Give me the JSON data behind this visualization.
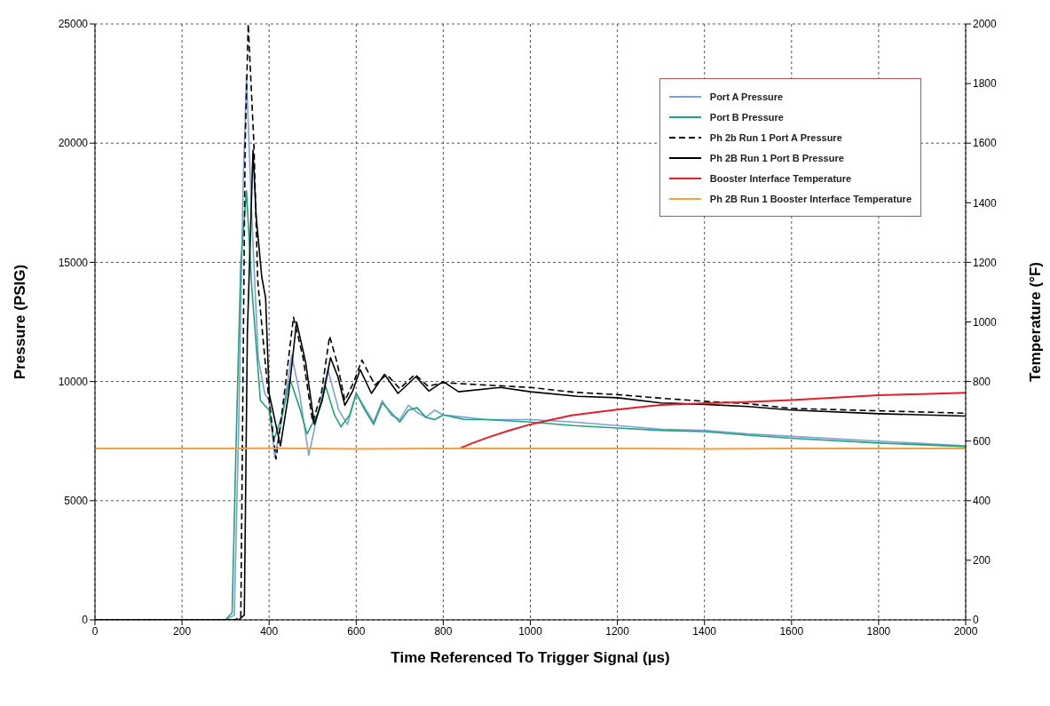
{
  "chart_data": {
    "type": "line",
    "xlabel": "Time Referenced To Trigger Signal (µs)",
    "ylabel": "Pressure (PSIG)",
    "y2label": "Temperature (°F)",
    "xlim": [
      0,
      2000
    ],
    "xticks": [
      0,
      200,
      400,
      600,
      800,
      1000,
      1200,
      1400,
      1600,
      1800,
      2000
    ],
    "ylim": [
      0,
      25000
    ],
    "yticks": [
      0,
      5000,
      10000,
      15000,
      20000,
      25000
    ],
    "y2lim": [
      0,
      2000
    ],
    "y2ticks": [
      0,
      200,
      400,
      600,
      800,
      1000,
      1200,
      1400,
      1600,
      1800,
      2000
    ],
    "grid": true,
    "legend": "top right",
    "marker": "none",
    "series": [
      {
        "name": "Port A Pressure",
        "color": "#7f9fd6",
        "x": [
          0,
          300,
          320,
          330,
          340,
          348,
          360,
          375,
          390,
          400,
          413,
          430,
          452,
          470,
          491,
          510,
          535,
          560,
          580,
          600,
          620,
          640,
          660,
          680,
          700,
          720,
          740,
          760,
          780,
          800,
          850,
          900,
          1000,
          1100,
          1200,
          1300,
          1400,
          1500,
          1600,
          1800,
          2000
        ],
        "values": [
          0,
          0,
          200,
          8000,
          18000,
          22800,
          17000,
          11000,
          9500,
          9200,
          6800,
          8500,
          11100,
          9500,
          6900,
          8500,
          10500,
          8800,
          8200,
          9500,
          8900,
          8300,
          9200,
          8600,
          8400,
          9000,
          8700,
          8500,
          8800,
          8600,
          8500,
          8400,
          8400,
          8300,
          8150,
          8000,
          7950,
          7800,
          7700,
          7500,
          7300
        ]
      },
      {
        "name": "Port B Pressure",
        "color": "#1fa37a",
        "x": [
          0,
          300,
          315,
          325,
          335,
          348,
          360,
          380,
          390,
          400,
          410,
          430,
          448,
          470,
          487,
          510,
          530,
          550,
          565,
          585,
          600,
          620,
          640,
          660,
          680,
          700,
          720,
          740,
          760,
          780,
          800,
          850,
          900,
          1000,
          1100,
          1200,
          1300,
          1400,
          1500,
          1600,
          1800,
          2000
        ],
        "values": [
          0,
          0,
          300,
          8000,
          15000,
          18000,
          14000,
          9200,
          9000,
          8800,
          7500,
          8600,
          10100,
          8900,
          7800,
          8600,
          9800,
          8600,
          8100,
          8600,
          9500,
          8800,
          8200,
          9100,
          8700,
          8300,
          8800,
          8900,
          8500,
          8400,
          8600,
          8400,
          8400,
          8300,
          8150,
          8050,
          7950,
          7900,
          7750,
          7620,
          7420,
          7270
        ]
      },
      {
        "name": "Ph 2b Run 1 Port A Pressure",
        "color": "#000000",
        "line_style": "dashed",
        "x": [
          0,
          320,
          335,
          345,
          352,
          365,
          374,
          385,
          396,
          416,
          435,
          456,
          478,
          500,
          520,
          539,
          556,
          574,
          595,
          613,
          643,
          670,
          700,
          735,
          765,
          800,
          900,
          1000,
          1100,
          1200,
          1300,
          1400,
          1500,
          1600,
          1800,
          2000
        ],
        "values": [
          0,
          0,
          100,
          20000,
          25000,
          20000,
          14200,
          12000,
          9850,
          6750,
          9500,
          12700,
          11000,
          8300,
          9500,
          11900,
          10800,
          9200,
          10000,
          10900,
          9850,
          10300,
          9700,
          10300,
          9800,
          9950,
          9850,
          9750,
          9550,
          9450,
          9300,
          9170,
          9070,
          8870,
          8770,
          8670
        ]
      },
      {
        "name": "Ph 2B Run 1 Port B Pressure",
        "color": "#000000",
        "x": [
          0,
          330,
          343,
          350,
          363,
          370,
          383,
          392,
          400,
          426,
          445,
          463,
          484,
          504,
          522,
          541,
          558,
          574,
          592,
          609,
          635,
          665,
          696,
          737,
          767,
          800,
          835,
          931,
          1000,
          1108,
          1200,
          1300,
          1400,
          1500,
          1600,
          1800,
          2000
        ],
        "values": [
          0,
          0,
          200,
          12000,
          19700,
          17000,
          14400,
          13500,
          9500,
          7300,
          9500,
          12500,
          10800,
          8200,
          9200,
          11000,
          10200,
          9000,
          9600,
          10500,
          9500,
          10300,
          9500,
          10200,
          9600,
          10000,
          9570,
          9750,
          9570,
          9380,
          9320,
          9100,
          9040,
          8950,
          8800,
          8650,
          8550
        ]
      },
      {
        "name": "Booster Interface Temperature",
        "color": "#e0202a",
        "axis": "y2",
        "x": [
          840,
          870,
          910,
          950,
          1000,
          1050,
          1094,
          1150,
          1200,
          1250,
          1300,
          1400,
          1481,
          1600,
          1700,
          1800,
          1900,
          2000
        ],
        "values": [
          577,
          595,
          616,
          635,
          656,
          672,
          686,
          697,
          706,
          714,
          721,
          727,
          730,
          738,
          746,
          754,
          758,
          762
        ]
      },
      {
        "name": "Ph 2B Run 1 Booster Interface Temperature",
        "color": "#f0a040",
        "axis": "y2",
        "x": [
          0,
          200,
          400,
          600,
          800,
          1000,
          1200,
          1400,
          1600,
          1800,
          2000
        ],
        "values": [
          575,
          575,
          576,
          574,
          575,
          575,
          575,
          574,
          575,
          575,
          575
        ]
      }
    ]
  }
}
